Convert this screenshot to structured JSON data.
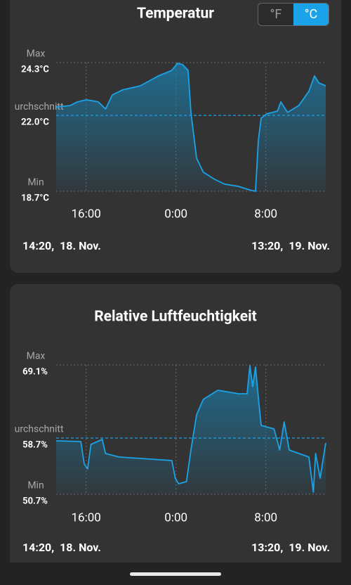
{
  "unit_toggle": [
    "°F",
    "°C"
  ],
  "chart_data": [
    {
      "type": "line",
      "title": "Temperatur",
      "color": "#1aa3e8",
      "tick_names": [
        "Min",
        "Durchschnitt",
        "Max"
      ],
      "ylim": [
        18.7,
        24.3
      ],
      "yticks": [
        {
          "value": 18.7,
          "label": "18.7°C"
        },
        {
          "value": 22.0,
          "label": "22.0°C"
        },
        {
          "value": 24.3,
          "label": "24.3°C"
        }
      ],
      "xlim": [
        0,
        24
      ],
      "xticks": [
        {
          "value": 2.667,
          "label": "16:00"
        },
        {
          "value": 10.667,
          "label": "0:00"
        },
        {
          "value": 18.667,
          "label": "8:00"
        }
      ],
      "x": [
        0,
        1.25,
        1.9,
        2.7,
        3.75,
        4.4,
        5,
        5.9,
        7.5,
        9.1,
        10.3,
        10.8,
        11.25,
        11.75,
        12,
        12.5,
        13.1,
        14.1,
        15,
        16.25,
        17.2,
        17.75,
        18,
        18.25,
        18.75,
        19.7,
        20,
        20.6,
        21.6,
        22.5,
        23,
        23.4,
        24
      ],
      "values": [
        22.37,
        22.43,
        22.59,
        22.68,
        22.59,
        22.28,
        22.89,
        23.11,
        23.29,
        23.72,
        23.96,
        24.27,
        24.21,
        23.96,
        22.13,
        20.14,
        19.53,
        19.22,
        19.01,
        18.91,
        18.76,
        18.7,
        20.9,
        21.88,
        22.07,
        22.19,
        22.59,
        22.13,
        22.43,
        23.05,
        23.72,
        23.41,
        23.29
      ],
      "start_label": "14:20,  18. Nov.",
      "end_label": "13:20,  19. Nov."
    },
    {
      "type": "line",
      "title": "Relative Luftfeuchtigkeit",
      "color": "#1aa3e8",
      "tick_names": [
        "Min",
        "Durchschnitt",
        "Max"
      ],
      "ylim": [
        50.7,
        69.1
      ],
      "yticks": [
        {
          "value": 50.7,
          "label": "50.7%"
        },
        {
          "value": 58.7,
          "label": "58.7%"
        },
        {
          "value": 69.1,
          "label": "69.1%"
        }
      ],
      "xlim": [
        0,
        24
      ],
      "xticks": [
        {
          "value": 2.667,
          "label": "16:00"
        },
        {
          "value": 10.667,
          "label": "0:00"
        },
        {
          "value": 18.667,
          "label": "8:00"
        }
      ],
      "x": [
        0,
        2.2,
        2.5,
        2.8,
        3.1,
        4.1,
        4.4,
        5.6,
        7.5,
        10.3,
        10.6,
        10.9,
        11.6,
        12,
        12.5,
        13.1,
        14.4,
        16.25,
        17,
        17.25,
        17.5,
        17.75,
        18,
        18.25,
        19.4,
        19.9,
        20.3,
        20.75,
        22.5,
        22.9,
        23.1,
        23.5,
        24
      ],
      "values": [
        58.3,
        58.2,
        55.0,
        54.3,
        57.8,
        58.5,
        56.5,
        56.0,
        55.8,
        55.5,
        53.0,
        52.2,
        52.5,
        57.0,
        62.0,
        64.2,
        65.5,
        65.0,
        65.0,
        69.0,
        66.0,
        68.8,
        64.5,
        60.5,
        60.0,
        57.0,
        61.0,
        57.0,
        56.0,
        51.0,
        56.5,
        53.0,
        58.0
      ],
      "start_label": "14:20,  18. Nov.",
      "end_label": "13:20,  19. Nov."
    }
  ]
}
